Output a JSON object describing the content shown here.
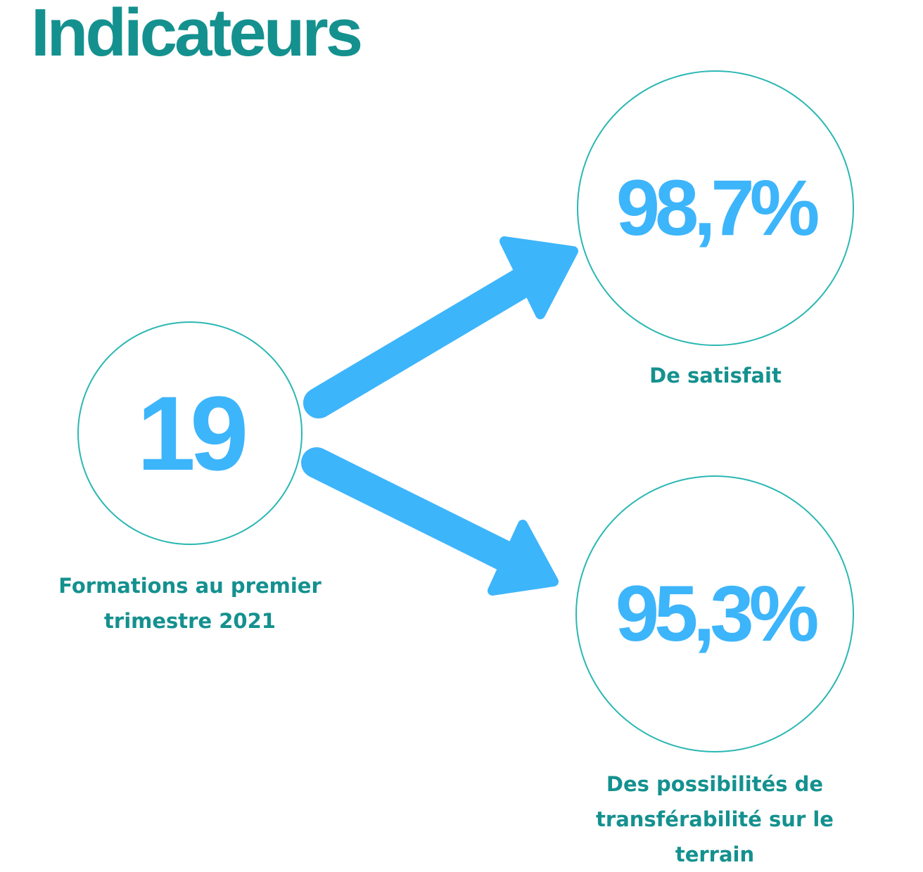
{
  "title": "Indicateurs",
  "colors": {
    "title": "#14918f",
    "circle_stroke": "#2ab7b3",
    "numbers": "#3db5fb",
    "arrows": "#3db5fb",
    "captions": "#14918f"
  },
  "indicators": {
    "source": {
      "value": "19",
      "caption_line1": "Formations au premier",
      "caption_line2": "trimestre 2021"
    },
    "satisfaction": {
      "value": "98,7%",
      "caption": "De satisfait"
    },
    "transferability": {
      "value": "95,3%",
      "caption_line1": "Des possibilités de",
      "caption_line2": "transférabilité sur le",
      "caption_line3": "terrain"
    }
  }
}
